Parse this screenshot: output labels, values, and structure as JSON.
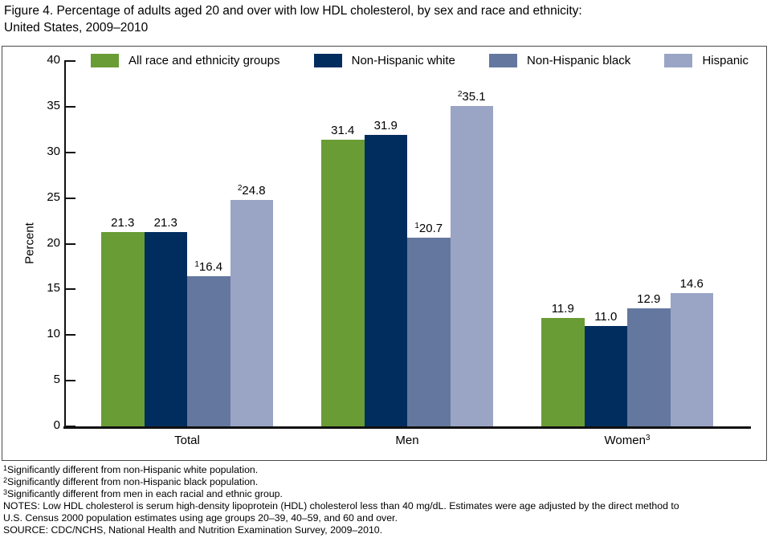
{
  "title": {
    "lines": [
      "Figure 4. Percentage of adults aged 20 and over with low HDL cholesterol, by sex and race and ethnicity:",
      "United States, 2009–2010"
    ]
  },
  "chart_data": {
    "type": "bar",
    "title": "Figure 4. Percentage of adults aged 20 and over with low HDL cholesterol, by sex and race and ethnicity: United States, 2009–2010",
    "ylabel": "Percent",
    "xlabel": "",
    "ylim": [
      0,
      40
    ],
    "yticks": [
      0,
      5,
      10,
      15,
      20,
      25,
      30,
      35,
      40
    ],
    "grid": false,
    "legend_position": "top-inside",
    "categories": [
      "Total",
      "Men",
      "Women"
    ],
    "category_superscripts": [
      "",
      "",
      "3"
    ],
    "series": [
      {
        "name": "All race and ethnicity groups",
        "color": "#6a9c35",
        "values": [
          21.3,
          31.4,
          11.9
        ],
        "value_superscripts": [
          "",
          "",
          ""
        ]
      },
      {
        "name": "Non-Hispanic white",
        "color": "#002d5e",
        "values": [
          21.3,
          31.9,
          11.0
        ],
        "value_superscripts": [
          "",
          "",
          ""
        ]
      },
      {
        "name": "Non-Hispanic black",
        "color": "#64779e",
        "values": [
          16.4,
          20.7,
          12.9
        ],
        "value_superscripts": [
          "1",
          "1",
          ""
        ]
      },
      {
        "name": "Hispanic",
        "color": "#9aa5c6",
        "values": [
          24.8,
          35.1,
          14.6
        ],
        "value_superscripts": [
          "2",
          "2",
          ""
        ]
      }
    ]
  },
  "footnotes": [
    {
      "sup": "1",
      "text": "Significantly different from non-Hispanic white population."
    },
    {
      "sup": "2",
      "text": "Significantly different from non-Hispanic black population."
    },
    {
      "sup": "3",
      "text": "Significantly different from men in each racial and ethnic group."
    },
    {
      "sup": "",
      "text": "NOTES: Low HDL cholesterol is serum high-density lipoprotein (HDL) cholesterol less than 40 mg/dL. Estimates were age adjusted by the direct method to"
    },
    {
      "sup": "",
      "text": "U.S. Census 2000 population estimates using age groups 20–39, 40–59, and 60 and over."
    },
    {
      "sup": "",
      "text": "SOURCE: CDC/NCHS, National Health and Nutrition Examination Survey, 2009–2010."
    }
  ]
}
